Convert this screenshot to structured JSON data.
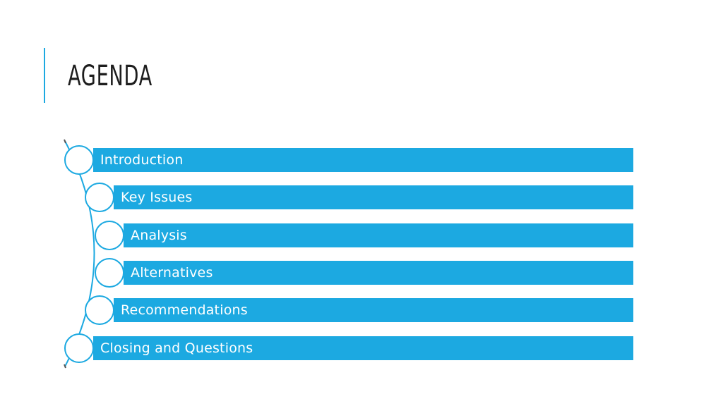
{
  "slide": {
    "title": "AGENDA",
    "accent_color": "#1ca9e1",
    "items": [
      {
        "label": "Introduction"
      },
      {
        "label": "Key Issues"
      },
      {
        "label": "Analysis"
      },
      {
        "label": "Alternatives"
      },
      {
        "label": "Recommendations"
      },
      {
        "label": "Closing and Questions"
      }
    ]
  }
}
